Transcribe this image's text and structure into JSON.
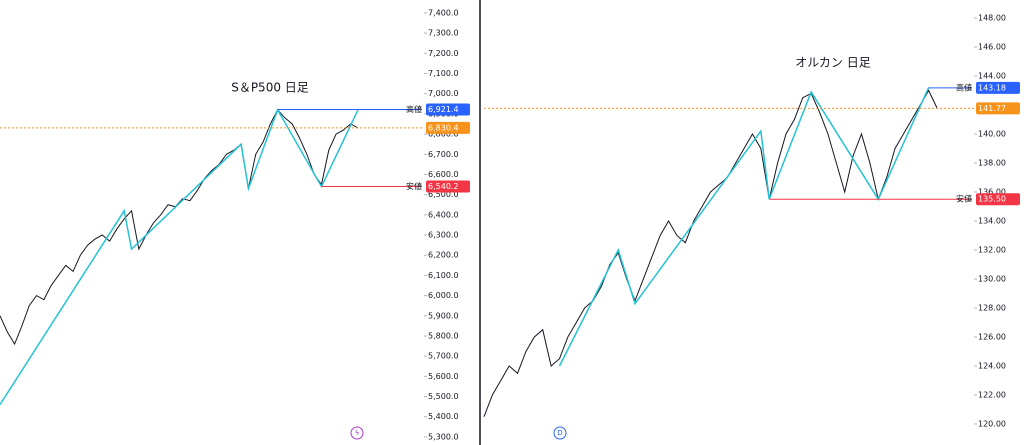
{
  "chart_data": [
    {
      "type": "line",
      "title": "S＆P500 日足",
      "color": "#131722",
      "zigzag_color": "#22c3d6",
      "values": [
        5900,
        5820,
        5760,
        5850,
        5950,
        6000,
        5980,
        6050,
        6100,
        6150,
        6120,
        6200,
        6250,
        6280,
        6300,
        6270,
        6330,
        6380,
        6420,
        6230,
        6300,
        6360,
        6400,
        6450,
        6440,
        6480,
        6470,
        6520,
        6580,
        6620,
        6650,
        6700,
        6720,
        6750,
        6530,
        6700,
        6760,
        6850,
        6920,
        6880,
        6850,
        6780,
        6700,
        6600,
        6550,
        6720,
        6800,
        6820,
        6850,
        6830
      ],
      "zigzag": {
        "x": [
          0,
          17,
          18,
          33,
          34,
          38,
          44,
          49
        ],
        "values": [
          5460,
          6420,
          6230,
          6750,
          6530,
          6920,
          6540,
          6920
        ]
      },
      "ylim": [
        5260,
        7464
      ],
      "yticks": [
        {
          "value": 5300,
          "label": "5,300.0"
        },
        {
          "value": 5400,
          "label": "5,400.0"
        },
        {
          "value": 5500,
          "label": "5,500.0"
        },
        {
          "value": 5600,
          "label": "5,600.0"
        },
        {
          "value": 5700,
          "label": "5,700.0"
        },
        {
          "value": 5800,
          "label": "5,800.0"
        },
        {
          "value": 5900,
          "label": "5,900.0"
        },
        {
          "value": 6000,
          "label": "6,000.0"
        },
        {
          "value": 6100,
          "label": "6,100.0"
        },
        {
          "value": 6200,
          "label": "6,200.0"
        },
        {
          "value": 6300,
          "label": "6,300.0"
        },
        {
          "value": 6400,
          "label": "6,400.0"
        },
        {
          "value": 6500,
          "label": "6,500.0"
        },
        {
          "value": 6600,
          "label": "6,600.0"
        },
        {
          "value": 6700,
          "label": "6,700.0"
        },
        {
          "value": 6800,
          "label": "6,800.0"
        },
        {
          "value": 6900,
          "label": "6,900.0"
        },
        {
          "value": 7000,
          "label": "7,000.0"
        },
        {
          "value": 7100,
          "label": "7,100.0"
        },
        {
          "value": 7200,
          "label": "7,200.0"
        },
        {
          "value": 7300,
          "label": "7,300.0"
        },
        {
          "value": 7400,
          "label": "7,400.0"
        }
      ],
      "levels": [
        {
          "name": "高値",
          "value": 6921.4,
          "label": "6,921.4",
          "color": "#2962ff"
        },
        {
          "value": 6830.4,
          "label": "6,830.4",
          "color": "#f7931a"
        },
        {
          "name": "安値",
          "value": 6540.2,
          "label": "6,540.2",
          "color": "#f23645"
        }
      ]
    },
    {
      "type": "line",
      "title": "オルカン 日足",
      "color": "#131722",
      "zigzag_color": "#22c3d6",
      "values": [
        120.5,
        122,
        123,
        124,
        123.5,
        125,
        126,
        126.5,
        124,
        124.5,
        126,
        127,
        128,
        128.5,
        129.5,
        131,
        131.8,
        130,
        128.5,
        130,
        131.5,
        133,
        134,
        133,
        132.5,
        134,
        135,
        136,
        136.5,
        137,
        138,
        139,
        140,
        139,
        135.5,
        138,
        140,
        141,
        142.5,
        142.8,
        141.5,
        140,
        138,
        136,
        138.5,
        140,
        138,
        135.5,
        137,
        139,
        140,
        141,
        142,
        143,
        141.8
      ],
      "zigzag": {
        "x": [
          9,
          16,
          18,
          33,
          34,
          39,
          47,
          53
        ],
        "values": [
          124,
          132,
          128.3,
          140.2,
          135.5,
          142.9,
          135.5,
          143.2
        ]
      },
      "ylim": [
        118.55,
        149.24
      ],
      "yticks": [
        {
          "value": 120,
          "label": "120.00"
        },
        {
          "value": 122,
          "label": "122.00"
        },
        {
          "value": 124,
          "label": "124.00"
        },
        {
          "value": 126,
          "label": "126.00"
        },
        {
          "value": 128,
          "label": "128.00"
        },
        {
          "value": 130,
          "label": "130.00"
        },
        {
          "value": 132,
          "label": "132.00"
        },
        {
          "value": 134,
          "label": "134.00"
        },
        {
          "value": 136,
          "label": "136.00"
        },
        {
          "value": 138,
          "label": "138.00"
        },
        {
          "value": 140,
          "label": "140.00"
        },
        {
          "value": 144,
          "label": "144.00"
        },
        {
          "value": 146,
          "label": "146.00"
        },
        {
          "value": 148,
          "label": "148.00"
        }
      ],
      "levels": [
        {
          "name": "高値",
          "value": 143.18,
          "label": "143.18",
          "color": "#2962ff"
        },
        {
          "value": 141.77,
          "label": "141.77",
          "color": "#f7931a"
        },
        {
          "name": "安値",
          "value": 135.5,
          "label": "135.50",
          "color": "#f23645"
        }
      ]
    }
  ]
}
